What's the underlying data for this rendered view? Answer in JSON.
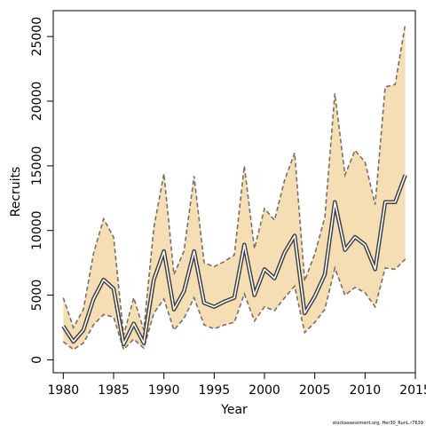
{
  "chart_data": {
    "type": "line",
    "xlabel": "Year",
    "ylabel": "Recruits",
    "xlim": [
      1979,
      2015
    ],
    "ylim": [
      -1000,
      27000
    ],
    "x_ticks": [
      1980,
      1985,
      1990,
      1995,
      2000,
      2005,
      2010,
      2015
    ],
    "y_ticks": [
      0,
      5000,
      10000,
      15000,
      20000,
      25000
    ],
    "x": [
      1980,
      1981,
      1982,
      1983,
      1984,
      1985,
      1986,
      1987,
      1988,
      1989,
      1990,
      1991,
      1992,
      1993,
      1994,
      1995,
      1996,
      1997,
      1998,
      1999,
      2000,
      2001,
      2002,
      2003,
      2004,
      2005,
      2006,
      2007,
      2008,
      2009,
      2010,
      2011,
      2012,
      2013,
      2014
    ],
    "series": [
      {
        "role": "estimate",
        "values": [
          2600,
          1400,
          2300,
          4700,
          6200,
          5500,
          1200,
          2800,
          1300,
          6200,
          8400,
          3900,
          5300,
          8400,
          4400,
          4100,
          4500,
          4800,
          8900,
          5000,
          7000,
          6300,
          8300,
          9600,
          3600,
          4900,
          6600,
          12200,
          8500,
          9500,
          8900,
          7000,
          12200,
          12200,
          14300
        ]
      },
      {
        "role": "upper",
        "values": [
          4800,
          2500,
          3900,
          8200,
          10900,
          9500,
          1900,
          4800,
          2300,
          10200,
          14400,
          6600,
          8400,
          14200,
          7500,
          7200,
          7600,
          8100,
          15000,
          8600,
          11700,
          10800,
          13900,
          16000,
          6100,
          8200,
          11000,
          20600,
          14300,
          16200,
          15300,
          12000,
          21100,
          21300,
          26000
        ]
      },
      {
        "role": "lower",
        "values": [
          1400,
          800,
          1300,
          2700,
          3500,
          3300,
          800,
          1600,
          900,
          3600,
          4700,
          2300,
          3200,
          4800,
          2700,
          2400,
          2700,
          2900,
          5100,
          3000,
          4100,
          3800,
          4800,
          5700,
          2100,
          2900,
          3900,
          7100,
          5000,
          5600,
          5200,
          4100,
          7100,
          7000,
          7800
        ]
      }
    ],
    "grid": false,
    "legend": "none",
    "colors": {
      "band": "#f5deb3",
      "band_edge": "#7a6e66",
      "line": "#3d3d3d",
      "line_halo": "#ffffff"
    }
  },
  "footer_text": "stockassessment.org, Her30_RunL r7639"
}
